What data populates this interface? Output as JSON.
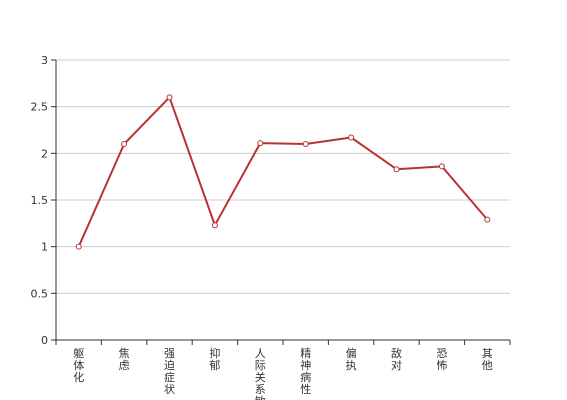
{
  "chart_data": {
    "type": "line",
    "categories": [
      "躯体化",
      "焦虑",
      "强迫症状",
      "抑郁",
      "人际关系敏感",
      "精神病性",
      "偏执",
      "敌对",
      "恐怖",
      "其他"
    ],
    "series": [
      {
        "values": [
          1.0,
          2.1,
          2.6,
          1.23,
          2.11,
          2.1,
          2.17,
          1.83,
          1.86,
          1.29
        ]
      }
    ],
    "ylim": [
      0,
      3
    ],
    "yticks": [
      "0",
      "0.5",
      "1",
      "1.5",
      "2",
      "2.5",
      "3"
    ],
    "grid": true,
    "line_color": "#b83232"
  }
}
